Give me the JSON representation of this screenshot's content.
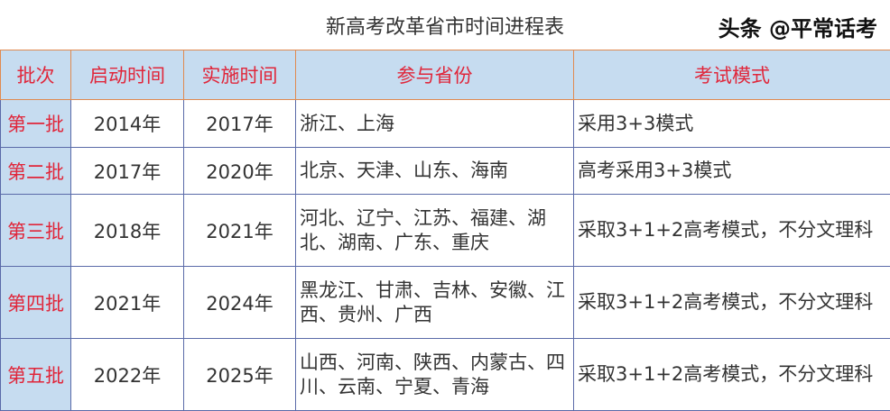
{
  "title": "新高考改革省市时间进程表",
  "headers": [
    "批次",
    "启动时间",
    "实施时间",
    "参与省份",
    "考试模式"
  ],
  "rows": [
    {
      "batch": "第一批",
      "start": "2014年",
      "impl": "2017年",
      "provinces": "浙江、上海",
      "mode": "采用3+3模式"
    },
    {
      "batch": "第二批",
      "start": "2017年",
      "impl": "2020年",
      "provinces": "北京、天津、山东、海南",
      "mode": "高考采用3+3模式"
    },
    {
      "batch": "第三批",
      "start": "2018年",
      "impl": "2021年",
      "provinces": "河北、辽宁、江苏、福建、湖北、湖南、广东、重庆",
      "mode": "采取3+1+2高考模式，不分文理科"
    },
    {
      "batch": "第四批",
      "start": "2021年",
      "impl": "2024年",
      "provinces": "黑龙江、甘肃、吉林、安徽、江西、贵州、广西",
      "mode": "采取3+1+2高考模式，不分文理科"
    },
    {
      "batch": "第五批",
      "start": "2022年",
      "impl": "2025年",
      "provinces": "山西、河南、陕西、内蒙古、四川、云南、宁夏、青海",
      "mode": "采取3+1+2高考模式，不分文理科"
    }
  ],
  "watermark": "头条 @平常话考"
}
